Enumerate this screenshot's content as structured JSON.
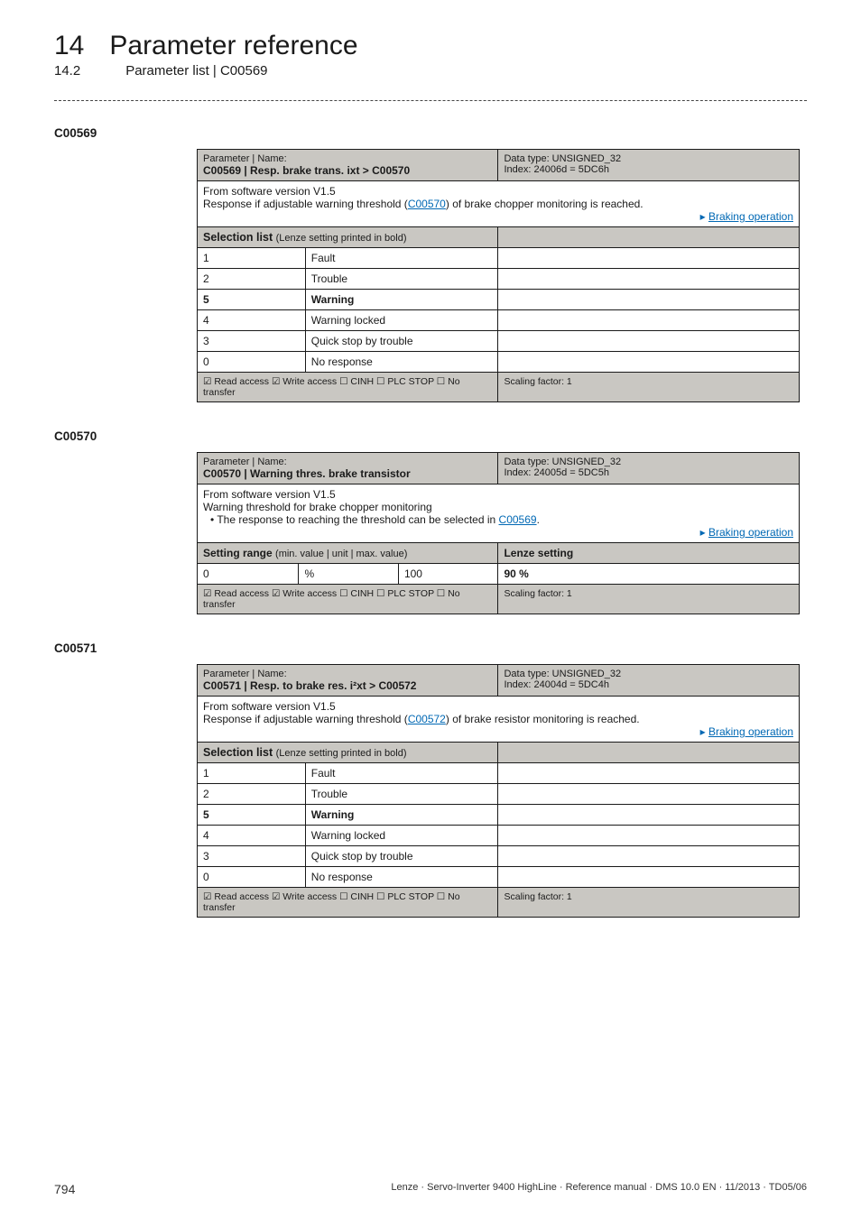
{
  "header": {
    "chapter_num": "14",
    "chapter_title": "Parameter reference",
    "section_num": "14.2",
    "section_title": "Parameter list | C00569"
  },
  "param569": {
    "code": "C00569",
    "head_label": "Parameter | Name:",
    "title": "C00569 | Resp. brake trans. ixt > C00570",
    "datatype": "Data type: UNSIGNED_32",
    "index": "Index: 24006d = 5DC6h",
    "from_sw": "From software version V1.5",
    "desc_pre": "Response if adjustable warning threshold (",
    "desc_link": "C00570",
    "desc_post": ") of brake chopper monitoring is reached.",
    "braking_arrow": "▸",
    "braking_link": "Braking operation",
    "sel_header": "Selection list",
    "sel_header_thin": "(Lenze setting printed in bold)",
    "rows": [
      {
        "n": "1",
        "v": "Fault",
        "bold": false
      },
      {
        "n": "2",
        "v": "Trouble",
        "bold": false
      },
      {
        "n": "5",
        "v": "Warning",
        "bold": true
      },
      {
        "n": "4",
        "v": "Warning locked",
        "bold": false
      },
      {
        "n": "3",
        "v": "Quick stop by trouble",
        "bold": false
      },
      {
        "n": "0",
        "v": "No response",
        "bold": false
      }
    ],
    "footer_left": "☑ Read access   ☑ Write access   ☐ CINH   ☐ PLC STOP   ☐ No transfer",
    "footer_mid": "Scaling factor: 1"
  },
  "param570": {
    "code": "C00570",
    "head_label": "Parameter | Name:",
    "title": "C00570 | Warning thres. brake transistor",
    "datatype": "Data type: UNSIGNED_32",
    "index": "Index: 24005d = 5DC5h",
    "from_sw": "From software version V1.5",
    "desc_line1": "Warning threshold for brake chopper monitoring",
    "desc_bullet_pre": "• The response to reaching the threshold can be selected in ",
    "desc_bullet_link": "C00569",
    "desc_bullet_post": ".",
    "braking_arrow": "▸",
    "braking_link": "Braking operation",
    "setting_header": "Setting range",
    "setting_header_thin": "(min. value | unit | max. value)",
    "lenze_header": "Lenze setting",
    "min": "0",
    "unit": "%",
    "max": "100",
    "lenze_val": "90 %",
    "footer_left": "☑ Read access   ☑ Write access   ☐ CINH   ☐ PLC STOP   ☐ No transfer",
    "footer_mid": "Scaling factor: 1"
  },
  "param571": {
    "code": "C00571",
    "head_label": "Parameter | Name:",
    "title": "C00571 | Resp. to brake res. i²xt > C00572",
    "datatype": "Data type: UNSIGNED_32",
    "index": "Index: 24004d = 5DC4h",
    "from_sw": "From software version V1.5",
    "desc_pre": "Response if adjustable warning threshold (",
    "desc_link": "C00572",
    "desc_post": ") of brake resistor monitoring is reached.",
    "braking_arrow": "▸",
    "braking_link": "Braking operation",
    "sel_header": "Selection list",
    "sel_header_thin": "(Lenze setting printed in bold)",
    "rows": [
      {
        "n": "1",
        "v": "Fault",
        "bold": false
      },
      {
        "n": "2",
        "v": "Trouble",
        "bold": false
      },
      {
        "n": "5",
        "v": "Warning",
        "bold": true
      },
      {
        "n": "4",
        "v": "Warning locked",
        "bold": false
      },
      {
        "n": "3",
        "v": "Quick stop by trouble",
        "bold": false
      },
      {
        "n": "0",
        "v": "No response",
        "bold": false
      }
    ],
    "footer_left": "☑ Read access   ☑ Write access   ☐ CINH   ☐ PLC STOP   ☐ No transfer",
    "footer_mid": "Scaling factor: 1"
  },
  "footer": {
    "page": "794",
    "text": "Lenze · Servo-Inverter 9400 HighLine · Reference manual · DMS 10.0 EN · 11/2013 · TD05/06"
  }
}
